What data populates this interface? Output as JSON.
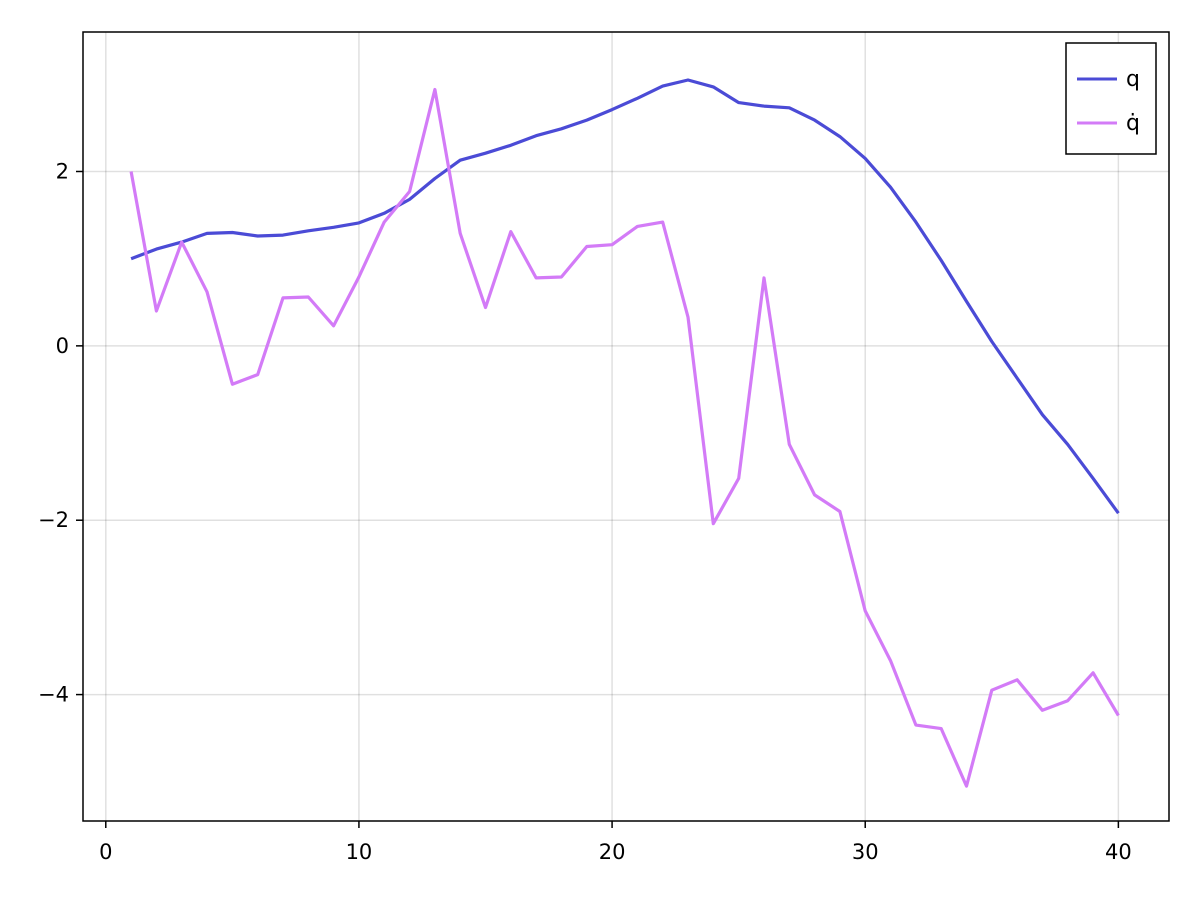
{
  "chart_data": {
    "type": "line",
    "title": "",
    "xlabel": "",
    "ylabel": "",
    "xlim": [
      -0.9,
      42
    ],
    "ylim": [
      -5.45,
      3.6
    ],
    "xticks": [
      0,
      10,
      20,
      30,
      40
    ],
    "yticks": [
      2,
      0,
      -2,
      -4
    ],
    "xtick_labels": [
      "0",
      "10",
      "20",
      "30",
      "40"
    ],
    "ytick_labels": [
      "2",
      "0",
      "−2",
      "−4"
    ],
    "grid": true,
    "legend_position": "top-right",
    "x": [
      1,
      2,
      3,
      4,
      5,
      6,
      7,
      8,
      9,
      10,
      11,
      12,
      13,
      14,
      15,
      16,
      17,
      18,
      19,
      20,
      21,
      22,
      23,
      24,
      25,
      26,
      27,
      28,
      29,
      30,
      31,
      32,
      33,
      34,
      35,
      36,
      37,
      38,
      39,
      40
    ],
    "series": [
      {
        "name": "q",
        "color": "#4b4bd6",
        "values": [
          1.0,
          1.11,
          1.19,
          1.29,
          1.3,
          1.26,
          1.27,
          1.32,
          1.36,
          1.41,
          1.52,
          1.68,
          1.92,
          2.13,
          2.21,
          2.3,
          2.41,
          2.49,
          2.59,
          2.71,
          2.84,
          2.98,
          3.05,
          2.97,
          2.79,
          2.75,
          2.73,
          2.59,
          2.4,
          2.15,
          1.82,
          1.42,
          0.98,
          0.51,
          0.05,
          -0.37,
          -0.79,
          -1.13,
          -1.52,
          -1.92
        ]
      },
      {
        "name": "q̇",
        "color": "#d37bf7",
        "values": [
          2.0,
          0.4,
          1.19,
          0.62,
          -0.44,
          -0.33,
          0.55,
          0.56,
          0.23,
          0.79,
          1.42,
          1.77,
          2.94,
          1.29,
          0.44,
          1.31,
          0.78,
          0.79,
          1.14,
          1.16,
          1.37,
          1.42,
          0.33,
          -2.04,
          -1.52,
          0.78,
          -1.13,
          -1.71,
          -1.9,
          -3.04,
          -3.61,
          -4.35,
          -4.39,
          -5.05,
          -3.95,
          -3.83,
          -4.18,
          -4.07,
          -3.75,
          -4.24
        ]
      }
    ]
  }
}
